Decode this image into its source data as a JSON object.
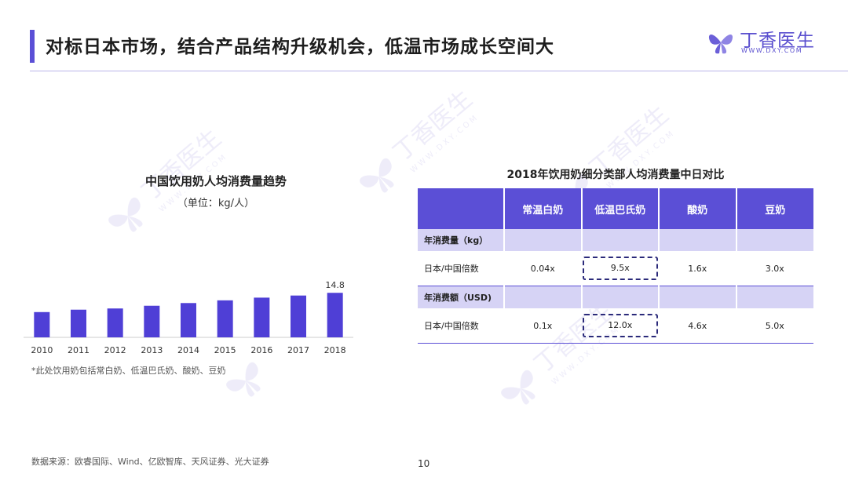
{
  "header": {
    "title": "对标日本市场，结合产品结构升级机会，低温市场成长空间大",
    "logo_text": "丁香医生",
    "logo_url": "WWW.DXY.COM"
  },
  "watermark": {
    "text": "丁香医生",
    "url": "WWW.DXY.COM"
  },
  "left_chart": {
    "title": "中国饮用奶人均消费量趋势",
    "unit": "（单位：kg/人）",
    "note": "*此处饮用奶包括常白奶、低温巴氏奶、酸奶、豆奶"
  },
  "chart_data": {
    "type": "bar",
    "categories": [
      "2010",
      "2011",
      "2012",
      "2013",
      "2014",
      "2015",
      "2016",
      "2017",
      "2018"
    ],
    "values": [
      8.4,
      9.2,
      9.6,
      10.5,
      11.4,
      12.3,
      13.2,
      13.9,
      14.8
    ],
    "data_labels": {
      "2018": "14.8"
    },
    "title": "中国饮用奶人均消费量趋势",
    "ylabel": "",
    "xlabel": "",
    "ylim": [
      0,
      20
    ],
    "color": "#4f3fd6",
    "grid": false
  },
  "table": {
    "title": "2018年饮用奶细分类部人均消费量中日对比",
    "headers": [
      "",
      "常温白奶",
      "低温巴氏奶",
      "酸奶",
      "豆奶"
    ],
    "sections": [
      {
        "label": "年消费量（kg）",
        "row_label": "日本/中国倍数",
        "values": [
          "0.04x",
          "9.5x",
          "1.6x",
          "3.0x"
        ],
        "highlight_index": 1
      },
      {
        "label": "年消费额（USD)",
        "row_label": "日本/中国倍数",
        "values": [
          "0.1x",
          "12.0x",
          "4.6x",
          "5.0x"
        ],
        "highlight_index": 1
      }
    ],
    "header_color": "#5b4fd6",
    "section_color": "#d6d3f5"
  },
  "footer": {
    "source": "数据来源：欧睿国际、Wind、亿欧智库、天风证券、光大证券",
    "page_number": "10"
  }
}
